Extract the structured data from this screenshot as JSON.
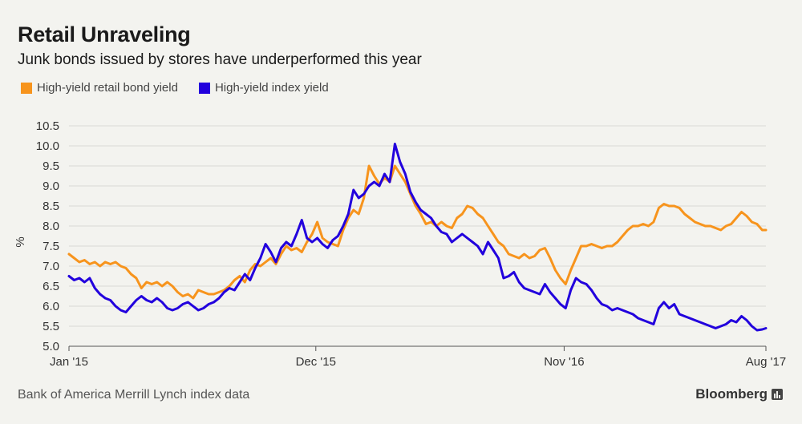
{
  "header": {
    "title": "Retail Unraveling",
    "subtitle": "Junk bonds issued by stores have underperformed this year"
  },
  "footer": {
    "source": "Bank of America Merrill Lynch index data",
    "brand": "Bloomberg"
  },
  "colors": {
    "retail": "#f7941d",
    "index": "#2200dd",
    "grid": "#d9d9d4",
    "axis": "#555555"
  },
  "chart_data": {
    "type": "line",
    "ylabel": "%",
    "ylim": [
      5.0,
      10.5
    ],
    "yticks": [
      5.0,
      5.5,
      6.0,
      6.5,
      7.0,
      7.5,
      8.0,
      8.5,
      9.0,
      9.5,
      10.0,
      10.5
    ],
    "xlim": [
      "2015-01-01",
      "2017-08-01"
    ],
    "xticks": [
      {
        "date": "2015-01-01",
        "label": "Jan '15"
      },
      {
        "date": "2015-12-01",
        "label": "Dec '15"
      },
      {
        "date": "2016-11-01",
        "label": "Nov '16"
      },
      {
        "date": "2017-08-01",
        "label": "Aug '17"
      }
    ],
    "grid": "horizontal",
    "legend_position": "top-left",
    "series": [
      {
        "name": "High-yield retail bond yield",
        "color": "#f7941d",
        "points": [
          [
            "2015-01-01",
            7.3
          ],
          [
            "2015-01-08",
            7.2
          ],
          [
            "2015-01-15",
            7.1
          ],
          [
            "2015-01-22",
            7.15
          ],
          [
            "2015-01-29",
            7.05
          ],
          [
            "2015-02-05",
            7.1
          ],
          [
            "2015-02-12",
            7.0
          ],
          [
            "2015-02-19",
            7.1
          ],
          [
            "2015-02-26",
            7.05
          ],
          [
            "2015-03-05",
            7.1
          ],
          [
            "2015-03-12",
            7.0
          ],
          [
            "2015-03-19",
            6.95
          ],
          [
            "2015-03-26",
            6.8
          ],
          [
            "2015-04-02",
            6.7
          ],
          [
            "2015-04-09",
            6.45
          ],
          [
            "2015-04-16",
            6.6
          ],
          [
            "2015-04-23",
            6.55
          ],
          [
            "2015-04-30",
            6.6
          ],
          [
            "2015-05-07",
            6.5
          ],
          [
            "2015-05-14",
            6.6
          ],
          [
            "2015-05-21",
            6.5
          ],
          [
            "2015-05-28",
            6.35
          ],
          [
            "2015-06-04",
            6.25
          ],
          [
            "2015-06-11",
            6.3
          ],
          [
            "2015-06-18",
            6.2
          ],
          [
            "2015-06-25",
            6.4
          ],
          [
            "2015-07-02",
            6.35
          ],
          [
            "2015-07-09",
            6.3
          ],
          [
            "2015-07-16",
            6.3
          ],
          [
            "2015-07-23",
            6.35
          ],
          [
            "2015-07-30",
            6.4
          ],
          [
            "2015-08-06",
            6.5
          ],
          [
            "2015-08-13",
            6.65
          ],
          [
            "2015-08-20",
            6.75
          ],
          [
            "2015-08-27",
            6.6
          ],
          [
            "2015-09-03",
            6.9
          ],
          [
            "2015-09-10",
            7.05
          ],
          [
            "2015-09-17",
            7.0
          ],
          [
            "2015-09-24",
            7.1
          ],
          [
            "2015-10-01",
            7.2
          ],
          [
            "2015-10-08",
            7.05
          ],
          [
            "2015-10-15",
            7.3
          ],
          [
            "2015-10-22",
            7.5
          ],
          [
            "2015-10-29",
            7.4
          ],
          [
            "2015-11-05",
            7.45
          ],
          [
            "2015-11-12",
            7.35
          ],
          [
            "2015-11-19",
            7.6
          ],
          [
            "2015-11-26",
            7.8
          ],
          [
            "2015-12-03",
            8.1
          ],
          [
            "2015-12-10",
            7.7
          ],
          [
            "2015-12-17",
            7.6
          ],
          [
            "2015-12-24",
            7.55
          ],
          [
            "2015-12-31",
            7.5
          ],
          [
            "2016-01-07",
            7.9
          ],
          [
            "2016-01-14",
            8.2
          ],
          [
            "2016-01-21",
            8.4
          ],
          [
            "2016-01-28",
            8.3
          ],
          [
            "2016-02-04",
            8.7
          ],
          [
            "2016-02-11",
            9.5
          ],
          [
            "2016-02-18",
            9.25
          ],
          [
            "2016-02-25",
            9.05
          ],
          [
            "2016-03-03",
            9.2
          ],
          [
            "2016-03-10",
            9.1
          ],
          [
            "2016-03-17",
            9.5
          ],
          [
            "2016-03-24",
            9.3
          ],
          [
            "2016-03-31",
            9.1
          ],
          [
            "2016-04-07",
            8.8
          ],
          [
            "2016-04-14",
            8.5
          ],
          [
            "2016-04-21",
            8.3
          ],
          [
            "2016-04-28",
            8.05
          ],
          [
            "2016-05-05",
            8.1
          ],
          [
            "2016-05-12",
            8.0
          ],
          [
            "2016-05-19",
            8.1
          ],
          [
            "2016-05-26",
            8.0
          ],
          [
            "2016-06-02",
            7.95
          ],
          [
            "2016-06-09",
            8.2
          ],
          [
            "2016-06-16",
            8.3
          ],
          [
            "2016-06-23",
            8.5
          ],
          [
            "2016-06-30",
            8.45
          ],
          [
            "2016-07-07",
            8.3
          ],
          [
            "2016-07-14",
            8.2
          ],
          [
            "2016-07-21",
            8.0
          ],
          [
            "2016-07-28",
            7.8
          ],
          [
            "2016-08-04",
            7.6
          ],
          [
            "2016-08-11",
            7.5
          ],
          [
            "2016-08-18",
            7.3
          ],
          [
            "2016-08-25",
            7.25
          ],
          [
            "2016-09-01",
            7.2
          ],
          [
            "2016-09-08",
            7.3
          ],
          [
            "2016-09-15",
            7.2
          ],
          [
            "2016-09-22",
            7.25
          ],
          [
            "2016-09-29",
            7.4
          ],
          [
            "2016-10-06",
            7.45
          ],
          [
            "2016-10-13",
            7.2
          ],
          [
            "2016-10-20",
            6.9
          ],
          [
            "2016-10-27",
            6.7
          ],
          [
            "2016-11-03",
            6.55
          ],
          [
            "2016-11-10",
            6.9
          ],
          [
            "2016-11-17",
            7.2
          ],
          [
            "2016-11-24",
            7.5
          ],
          [
            "2016-12-01",
            7.5
          ],
          [
            "2016-12-08",
            7.55
          ],
          [
            "2016-12-15",
            7.5
          ],
          [
            "2016-12-22",
            7.45
          ],
          [
            "2016-12-29",
            7.5
          ],
          [
            "2017-01-05",
            7.5
          ],
          [
            "2017-01-12",
            7.6
          ],
          [
            "2017-01-19",
            7.75
          ],
          [
            "2017-01-26",
            7.9
          ],
          [
            "2017-02-02",
            8.0
          ],
          [
            "2017-02-09",
            8.0
          ],
          [
            "2017-02-16",
            8.05
          ],
          [
            "2017-02-23",
            8.0
          ],
          [
            "2017-03-02",
            8.1
          ],
          [
            "2017-03-09",
            8.45
          ],
          [
            "2017-03-16",
            8.55
          ],
          [
            "2017-03-23",
            8.5
          ],
          [
            "2017-03-30",
            8.5
          ],
          [
            "2017-04-06",
            8.45
          ],
          [
            "2017-04-13",
            8.3
          ],
          [
            "2017-04-20",
            8.2
          ],
          [
            "2017-04-27",
            8.1
          ],
          [
            "2017-05-04",
            8.05
          ],
          [
            "2017-05-11",
            8.0
          ],
          [
            "2017-05-18",
            8.0
          ],
          [
            "2017-05-25",
            7.95
          ],
          [
            "2017-06-01",
            7.9
          ],
          [
            "2017-06-08",
            8.0
          ],
          [
            "2017-06-15",
            8.05
          ],
          [
            "2017-06-22",
            8.2
          ],
          [
            "2017-06-29",
            8.35
          ],
          [
            "2017-07-06",
            8.25
          ],
          [
            "2017-07-13",
            8.1
          ],
          [
            "2017-07-20",
            8.05
          ],
          [
            "2017-07-27",
            7.9
          ],
          [
            "2017-08-01",
            7.9
          ]
        ]
      },
      {
        "name": "High-yield index yield",
        "color": "#2200dd",
        "points": [
          [
            "2015-01-01",
            6.75
          ],
          [
            "2015-01-08",
            6.65
          ],
          [
            "2015-01-15",
            6.7
          ],
          [
            "2015-01-22",
            6.6
          ],
          [
            "2015-01-29",
            6.7
          ],
          [
            "2015-02-05",
            6.45
          ],
          [
            "2015-02-12",
            6.3
          ],
          [
            "2015-02-19",
            6.2
          ],
          [
            "2015-02-26",
            6.15
          ],
          [
            "2015-03-05",
            6.0
          ],
          [
            "2015-03-12",
            5.9
          ],
          [
            "2015-03-19",
            5.85
          ],
          [
            "2015-03-26",
            6.0
          ],
          [
            "2015-04-02",
            6.15
          ],
          [
            "2015-04-09",
            6.25
          ],
          [
            "2015-04-16",
            6.15
          ],
          [
            "2015-04-23",
            6.1
          ],
          [
            "2015-04-30",
            6.2
          ],
          [
            "2015-05-07",
            6.1
          ],
          [
            "2015-05-14",
            5.95
          ],
          [
            "2015-05-21",
            5.9
          ],
          [
            "2015-05-28",
            5.95
          ],
          [
            "2015-06-04",
            6.05
          ],
          [
            "2015-06-11",
            6.1
          ],
          [
            "2015-06-18",
            6.0
          ],
          [
            "2015-06-25",
            5.9
          ],
          [
            "2015-07-02",
            5.95
          ],
          [
            "2015-07-09",
            6.05
          ],
          [
            "2015-07-16",
            6.1
          ],
          [
            "2015-07-23",
            6.2
          ],
          [
            "2015-07-30",
            6.35
          ],
          [
            "2015-08-06",
            6.45
          ],
          [
            "2015-08-13",
            6.4
          ],
          [
            "2015-08-20",
            6.6
          ],
          [
            "2015-08-27",
            6.8
          ],
          [
            "2015-09-03",
            6.65
          ],
          [
            "2015-09-10",
            6.95
          ],
          [
            "2015-09-17",
            7.2
          ],
          [
            "2015-09-24",
            7.55
          ],
          [
            "2015-10-01",
            7.35
          ],
          [
            "2015-10-08",
            7.1
          ],
          [
            "2015-10-15",
            7.45
          ],
          [
            "2015-10-22",
            7.6
          ],
          [
            "2015-10-29",
            7.5
          ],
          [
            "2015-11-05",
            7.8
          ],
          [
            "2015-11-12",
            8.15
          ],
          [
            "2015-11-19",
            7.7
          ],
          [
            "2015-11-26",
            7.6
          ],
          [
            "2015-12-03",
            7.7
          ],
          [
            "2015-12-10",
            7.55
          ],
          [
            "2015-12-17",
            7.45
          ],
          [
            "2015-12-24",
            7.65
          ],
          [
            "2015-12-31",
            7.75
          ],
          [
            "2016-01-07",
            8.0
          ],
          [
            "2016-01-14",
            8.3
          ],
          [
            "2016-01-21",
            8.9
          ],
          [
            "2016-01-28",
            8.7
          ],
          [
            "2016-02-04",
            8.8
          ],
          [
            "2016-02-11",
            9.0
          ],
          [
            "2016-02-18",
            9.1
          ],
          [
            "2016-02-25",
            9.0
          ],
          [
            "2016-03-03",
            9.3
          ],
          [
            "2016-03-10",
            9.1
          ],
          [
            "2016-03-17",
            10.05
          ],
          [
            "2016-03-24",
            9.6
          ],
          [
            "2016-03-31",
            9.3
          ],
          [
            "2016-04-07",
            8.85
          ],
          [
            "2016-04-14",
            8.6
          ],
          [
            "2016-04-21",
            8.4
          ],
          [
            "2016-04-28",
            8.3
          ],
          [
            "2016-05-05",
            8.2
          ],
          [
            "2016-05-12",
            8.0
          ],
          [
            "2016-05-19",
            7.85
          ],
          [
            "2016-05-26",
            7.8
          ],
          [
            "2016-06-02",
            7.6
          ],
          [
            "2016-06-09",
            7.7
          ],
          [
            "2016-06-16",
            7.8
          ],
          [
            "2016-06-23",
            7.7
          ],
          [
            "2016-06-30",
            7.6
          ],
          [
            "2016-07-07",
            7.5
          ],
          [
            "2016-07-14",
            7.3
          ],
          [
            "2016-07-21",
            7.6
          ],
          [
            "2016-07-28",
            7.4
          ],
          [
            "2016-08-04",
            7.2
          ],
          [
            "2016-08-11",
            6.7
          ],
          [
            "2016-08-18",
            6.75
          ],
          [
            "2016-08-25",
            6.85
          ],
          [
            "2016-09-01",
            6.6
          ],
          [
            "2016-09-08",
            6.45
          ],
          [
            "2016-09-15",
            6.4
          ],
          [
            "2016-09-22",
            6.35
          ],
          [
            "2016-09-29",
            6.3
          ],
          [
            "2016-10-06",
            6.55
          ],
          [
            "2016-10-13",
            6.35
          ],
          [
            "2016-10-20",
            6.2
          ],
          [
            "2016-10-27",
            6.05
          ],
          [
            "2016-11-03",
            5.95
          ],
          [
            "2016-11-10",
            6.4
          ],
          [
            "2016-11-17",
            6.7
          ],
          [
            "2016-11-24",
            6.6
          ],
          [
            "2016-12-01",
            6.55
          ],
          [
            "2016-12-08",
            6.4
          ],
          [
            "2016-12-15",
            6.2
          ],
          [
            "2016-12-22",
            6.05
          ],
          [
            "2016-12-29",
            6.0
          ],
          [
            "2017-01-05",
            5.9
          ],
          [
            "2017-01-12",
            5.95
          ],
          [
            "2017-01-19",
            5.9
          ],
          [
            "2017-01-26",
            5.85
          ],
          [
            "2017-02-02",
            5.8
          ],
          [
            "2017-02-09",
            5.7
          ],
          [
            "2017-02-16",
            5.65
          ],
          [
            "2017-02-23",
            5.6
          ],
          [
            "2017-03-02",
            5.55
          ],
          [
            "2017-03-09",
            5.95
          ],
          [
            "2017-03-16",
            6.1
          ],
          [
            "2017-03-23",
            5.95
          ],
          [
            "2017-03-30",
            6.05
          ],
          [
            "2017-04-06",
            5.8
          ],
          [
            "2017-04-13",
            5.75
          ],
          [
            "2017-04-20",
            5.7
          ],
          [
            "2017-04-27",
            5.65
          ],
          [
            "2017-05-04",
            5.6
          ],
          [
            "2017-05-11",
            5.55
          ],
          [
            "2017-05-18",
            5.5
          ],
          [
            "2017-05-25",
            5.45
          ],
          [
            "2017-06-01",
            5.5
          ],
          [
            "2017-06-08",
            5.55
          ],
          [
            "2017-06-15",
            5.65
          ],
          [
            "2017-06-22",
            5.6
          ],
          [
            "2017-06-29",
            5.75
          ],
          [
            "2017-07-06",
            5.65
          ],
          [
            "2017-07-13",
            5.5
          ],
          [
            "2017-07-20",
            5.4
          ],
          [
            "2017-07-27",
            5.42
          ],
          [
            "2017-08-01",
            5.45
          ]
        ]
      }
    ]
  }
}
